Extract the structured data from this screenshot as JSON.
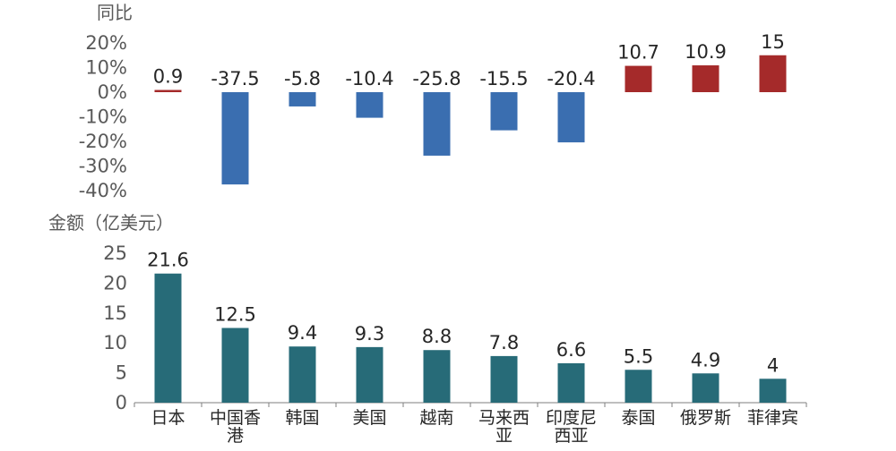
{
  "chart_data": [
    {
      "type": "bar",
      "title": "",
      "ylabel": "同比",
      "xlabel": "",
      "ylim": [
        -40,
        20
      ],
      "yticks": [
        "20%",
        "10%",
        "0%",
        "-10%",
        "-20%",
        "-30%",
        "-40%"
      ],
      "ytick_values": [
        20,
        10,
        0,
        -10,
        -20,
        -30,
        -40
      ],
      "categories": [
        "日本",
        "中国香港",
        "韩国",
        "美国",
        "越南",
        "马来西亚",
        "印度尼西亚",
        "泰国",
        "俄罗斯",
        "菲律宾"
      ],
      "values": [
        0.9,
        -37.5,
        -5.8,
        -10.4,
        -25.8,
        -15.5,
        -20.4,
        10.7,
        10.9,
        15
      ],
      "value_labels": [
        "0.9",
        "-37.5",
        "-5.8",
        "-10.4",
        "-25.8",
        "-15.5",
        "-20.4",
        "10.7",
        "10.9",
        "15"
      ],
      "colors": {
        "positive": "#a52a2a",
        "negative": "#3a6eb0"
      }
    },
    {
      "type": "bar",
      "title": "",
      "ylabel": "金额（亿美元）",
      "xlabel": "",
      "ylim": [
        0,
        25
      ],
      "yticks": [
        "25",
        "20",
        "15",
        "10",
        "5",
        "0"
      ],
      "ytick_values": [
        25,
        20,
        15,
        10,
        5,
        0
      ],
      "categories": [
        "日本",
        "中国香港",
        "韩国",
        "美国",
        "越南",
        "马来西亚",
        "印度尼西亚",
        "泰国",
        "俄罗斯",
        "菲律宾"
      ],
      "category_lines": [
        [
          "日本"
        ],
        [
          "中国香",
          "港"
        ],
        [
          "韩国"
        ],
        [
          "美国"
        ],
        [
          "越南"
        ],
        [
          "马来西",
          "亚"
        ],
        [
          "印度尼",
          "西亚"
        ],
        [
          "泰国"
        ],
        [
          "俄罗斯"
        ],
        [
          "菲律宾"
        ]
      ],
      "values": [
        21.6,
        12.5,
        9.4,
        9.3,
        8.8,
        7.8,
        6.6,
        5.5,
        4.9,
        4
      ],
      "value_labels": [
        "21.6",
        "12.5",
        "9.4",
        "9.3",
        "8.8",
        "7.8",
        "6.6",
        "5.5",
        "4.9",
        "4"
      ],
      "colors": {
        "bar": "#276b78",
        "axis": "#7f7f7f"
      }
    }
  ]
}
